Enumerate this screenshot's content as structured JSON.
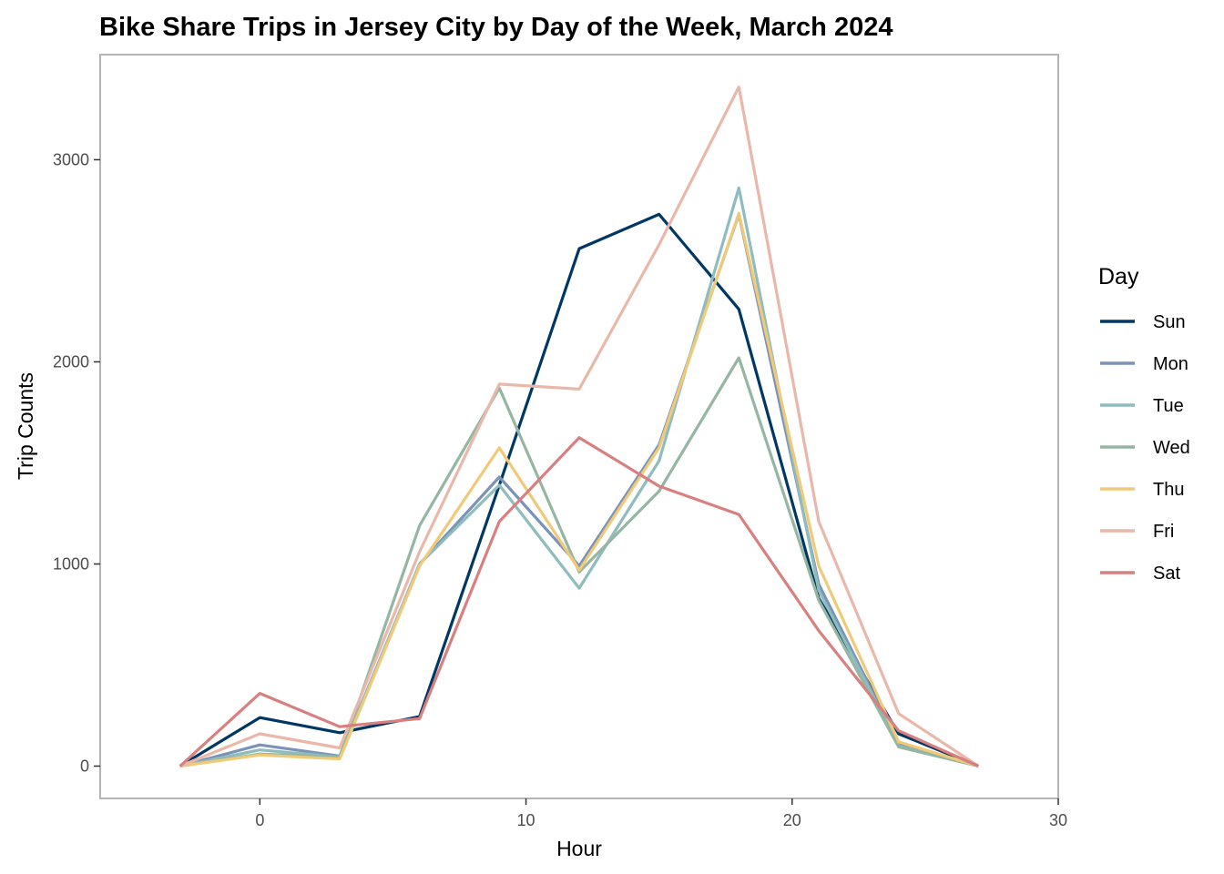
{
  "chart_data": {
    "type": "line",
    "title": "Bike Share Trips in Jersey City by Day of the Week, March 2024",
    "xlabel": "Hour",
    "ylabel": "Trip Counts",
    "xlim": [
      -6,
      30
    ],
    "ylim": [
      -160,
      3520
    ],
    "x_ticks": [
      0,
      10,
      20,
      30
    ],
    "y_ticks": [
      0,
      1000,
      2000,
      3000
    ],
    "grid": false,
    "legend": {
      "title": "Day",
      "placement": "right"
    },
    "x": [
      -3,
      0,
      3,
      6,
      9,
      12,
      15,
      18,
      21,
      24,
      27
    ],
    "series": [
      {
        "name": "Sun",
        "color": "#003764",
        "values": [
          0,
          240,
          165,
          245,
          1390,
          2560,
          2730,
          2260,
          830,
          160,
          0
        ]
      },
      {
        "name": "Mon",
        "color": "#7b93b8",
        "values": [
          0,
          105,
          50,
          1000,
          1430,
          990,
          1590,
          2730,
          900,
          110,
          0
        ]
      },
      {
        "name": "Tue",
        "color": "#8fbcbd",
        "values": [
          0,
          80,
          45,
          1000,
          1390,
          880,
          1510,
          2860,
          870,
          100,
          0
        ]
      },
      {
        "name": "Wed",
        "color": "#95b6a2",
        "values": [
          0,
          60,
          45,
          1190,
          1870,
          960,
          1360,
          2020,
          820,
          95,
          0
        ]
      },
      {
        "name": "Thu",
        "color": "#f0ca78",
        "values": [
          0,
          55,
          35,
          990,
          1575,
          970,
          1575,
          2735,
          990,
          120,
          0
        ]
      },
      {
        "name": "Fri",
        "color": "#e9b8aa",
        "values": [
          0,
          160,
          90,
          1060,
          1890,
          1865,
          2580,
          3360,
          1210,
          260,
          0
        ]
      },
      {
        "name": "Sat",
        "color": "#d88080",
        "values": [
          0,
          360,
          195,
          235,
          1210,
          1625,
          1385,
          1245,
          670,
          175,
          0
        ]
      }
    ]
  }
}
